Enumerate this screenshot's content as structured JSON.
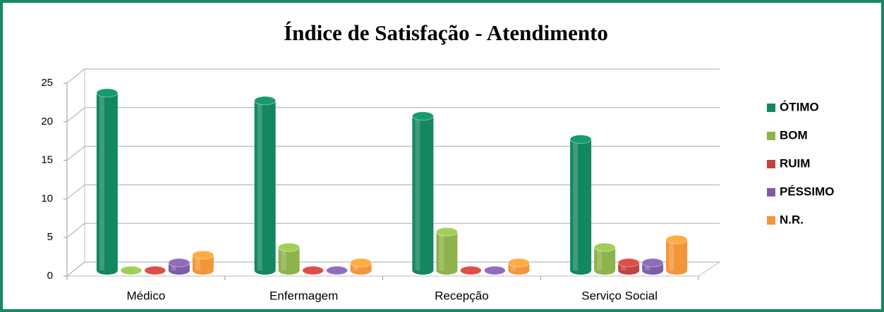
{
  "chart_data": {
    "type": "bar3d",
    "title": "Índice de Satisfação - Atendimento",
    "categories": [
      "Médico",
      "Enfermagem",
      "Recepção",
      "Serviço Social"
    ],
    "series": [
      {
        "name": "ÓTIMO",
        "color": "#13875f",
        "values": [
          23,
          22,
          20,
          17
        ]
      },
      {
        "name": "BOM",
        "color": "#8db34b",
        "values": [
          0,
          3,
          5,
          3
        ]
      },
      {
        "name": "RUIM",
        "color": "#c0443f",
        "values": [
          0,
          0,
          0,
          1
        ]
      },
      {
        "name": "PÉSSIMO",
        "color": "#7d5ea6",
        "values": [
          1,
          0,
          0,
          1
        ]
      },
      {
        "name": "N.R.",
        "color": "#f3963a",
        "values": [
          2,
          1,
          1,
          4
        ]
      }
    ],
    "ylim": [
      0,
      25
    ],
    "yticks": [
      0,
      5,
      10,
      15,
      20,
      25
    ],
    "grid": true,
    "legend": "right"
  }
}
